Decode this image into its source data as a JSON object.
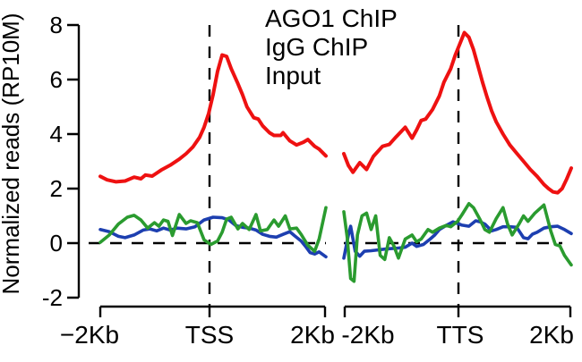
{
  "chart_data": {
    "type": "line",
    "title": "",
    "ylabel": "Normalized reads (RP10M)",
    "ylim": [
      -2,
      8
    ],
    "y_ticks": [
      "8",
      "6",
      "4",
      "2",
      "0",
      "-2"
    ],
    "y_tick_values": [
      8,
      6,
      4,
      2,
      0,
      -2
    ],
    "grid": false,
    "zero_dashed_line_y": 0,
    "legend_position": "top-center",
    "legend": [
      {
        "label": "AGO1 ChIP",
        "color": "#ee1111"
      },
      {
        "label": "IgG ChIP",
        "color": "#2a9b2f"
      },
      {
        "label": "Input",
        "color": "#1d3fb0"
      }
    ],
    "panels": [
      {
        "id": "tss",
        "center_reference": "TSS",
        "x_tick_labels": [
          "−2Kb",
          "TSS",
          "2Kb"
        ],
        "dashed_center_line": true,
        "series": [
          {
            "name": "AGO1 ChIP",
            "color": "#ee1111",
            "points": [
              [
                0.0,
                2.45
              ],
              [
                0.03,
                2.32
              ],
              [
                0.07,
                2.25
              ],
              [
                0.11,
                2.28
              ],
              [
                0.15,
                2.42
              ],
              [
                0.18,
                2.36
              ],
              [
                0.2,
                2.5
              ],
              [
                0.23,
                2.46
              ],
              [
                0.27,
                2.68
              ],
              [
                0.31,
                2.86
              ],
              [
                0.35,
                3.08
              ],
              [
                0.38,
                3.28
              ],
              [
                0.41,
                3.52
              ],
              [
                0.44,
                3.88
              ],
              [
                0.46,
                4.25
              ],
              [
                0.48,
                4.75
              ],
              [
                0.5,
                5.45
              ],
              [
                0.52,
                6.3
              ],
              [
                0.54,
                6.9
              ],
              [
                0.56,
                6.85
              ],
              [
                0.58,
                6.4
              ],
              [
                0.61,
                5.85
              ],
              [
                0.63,
                5.45
              ],
              [
                0.65,
                5.0
              ],
              [
                0.68,
                4.6
              ],
              [
                0.7,
                4.55
              ],
              [
                0.72,
                4.3
              ],
              [
                0.75,
                4.05
              ],
              [
                0.77,
                3.95
              ],
              [
                0.8,
                3.95
              ],
              [
                0.81,
                4.05
              ],
              [
                0.84,
                3.75
              ],
              [
                0.87,
                3.6
              ],
              [
                0.9,
                3.7
              ],
              [
                0.92,
                3.8
              ],
              [
                0.95,
                3.55
              ],
              [
                0.97,
                3.45
              ],
              [
                1.0,
                3.2
              ]
            ]
          },
          {
            "name": "Input",
            "color": "#1d3fb0",
            "points": [
              [
                0.0,
                0.5
              ],
              [
                0.04,
                0.42
              ],
              [
                0.08,
                0.25
              ],
              [
                0.11,
                0.2
              ],
              [
                0.15,
                0.3
              ],
              [
                0.19,
                0.48
              ],
              [
                0.22,
                0.52
              ],
              [
                0.25,
                0.45
              ],
              [
                0.28,
                0.55
              ],
              [
                0.31,
                0.48
              ],
              [
                0.34,
                0.55
              ],
              [
                0.38,
                0.52
              ],
              [
                0.42,
                0.6
              ],
              [
                0.46,
                0.85
              ],
              [
                0.5,
                0.95
              ],
              [
                0.54,
                0.93
              ],
              [
                0.57,
                0.85
              ],
              [
                0.6,
                0.65
              ],
              [
                0.63,
                0.58
              ],
              [
                0.66,
                0.55
              ],
              [
                0.69,
                0.48
              ],
              [
                0.72,
                0.32
              ],
              [
                0.75,
                0.25
              ],
              [
                0.78,
                0.22
              ],
              [
                0.81,
                0.32
              ],
              [
                0.84,
                0.42
              ],
              [
                0.86,
                0.28
              ],
              [
                0.89,
                0.08
              ],
              [
                0.91,
                -0.12
              ],
              [
                0.93,
                -0.35
              ],
              [
                0.95,
                -0.4
              ],
              [
                0.97,
                -0.32
              ],
              [
                1.0,
                -0.5
              ]
            ]
          },
          {
            "name": "IgG ChIP",
            "color": "#2a9b2f",
            "points": [
              [
                0.0,
                0.03
              ],
              [
                0.04,
                0.3
              ],
              [
                0.08,
                0.7
              ],
              [
                0.12,
                0.95
              ],
              [
                0.15,
                1.02
              ],
              [
                0.18,
                0.85
              ],
              [
                0.21,
                0.55
              ],
              [
                0.24,
                0.75
              ],
              [
                0.26,
                0.62
              ],
              [
                0.28,
                0.85
              ],
              [
                0.3,
                0.8
              ],
              [
                0.32,
                0.28
              ],
              [
                0.35,
                1.05
              ],
              [
                0.38,
                0.72
              ],
              [
                0.4,
                0.82
              ],
              [
                0.43,
                0.75
              ],
              [
                0.46,
                0.12
              ],
              [
                0.49,
                -0.05
              ],
              [
                0.52,
                0.08
              ],
              [
                0.54,
                0.4
              ],
              [
                0.56,
                0.88
              ],
              [
                0.58,
                0.95
              ],
              [
                0.61,
                0.52
              ],
              [
                0.63,
                0.72
              ],
              [
                0.66,
                0.5
              ],
              [
                0.69,
                1.05
              ],
              [
                0.71,
                0.45
              ],
              [
                0.74,
                0.5
              ],
              [
                0.77,
                0.85
              ],
              [
                0.79,
                0.62
              ],
              [
                0.82,
                1.0
              ],
              [
                0.84,
                0.52
              ],
              [
                0.87,
                0.55
              ],
              [
                0.89,
                0.32
              ],
              [
                0.92,
                -0.08
              ],
              [
                0.95,
                -0.3
              ],
              [
                0.97,
                0.15
              ],
              [
                1.0,
                1.3
              ]
            ]
          }
        ]
      },
      {
        "id": "tts",
        "center_reference": "TTS",
        "x_tick_labels": [
          "-2Kb",
          "TTS",
          "2Kb"
        ],
        "dashed_center_line": true,
        "series": [
          {
            "name": "AGO1 ChIP",
            "color": "#ee1111",
            "points": [
              [
                0.0,
                3.28
              ],
              [
                0.02,
                2.85
              ],
              [
                0.04,
                2.6
              ],
              [
                0.07,
                2.95
              ],
              [
                0.1,
                2.7
              ],
              [
                0.13,
                3.18
              ],
              [
                0.17,
                3.55
              ],
              [
                0.2,
                3.62
              ],
              [
                0.23,
                3.9
              ],
              [
                0.27,
                4.25
              ],
              [
                0.3,
                3.85
              ],
              [
                0.32,
                4.15
              ],
              [
                0.34,
                4.5
              ],
              [
                0.36,
                4.55
              ],
              [
                0.39,
                4.9
              ],
              [
                0.42,
                5.4
              ],
              [
                0.44,
                5.9
              ],
              [
                0.47,
                6.4
              ],
              [
                0.49,
                6.9
              ],
              [
                0.51,
                7.3
              ],
              [
                0.53,
                7.72
              ],
              [
                0.55,
                7.55
              ],
              [
                0.57,
                7.1
              ],
              [
                0.59,
                6.5
              ],
              [
                0.61,
                5.9
              ],
              [
                0.63,
                5.35
              ],
              [
                0.65,
                4.85
              ],
              [
                0.67,
                4.45
              ],
              [
                0.7,
                4.0
              ],
              [
                0.73,
                3.6
              ],
              [
                0.76,
                3.3
              ],
              [
                0.79,
                3.0
              ],
              [
                0.82,
                2.7
              ],
              [
                0.85,
                2.45
              ],
              [
                0.88,
                2.15
              ],
              [
                0.9,
                2.0
              ],
              [
                0.92,
                1.88
              ],
              [
                0.94,
                1.85
              ],
              [
                0.96,
                2.0
              ],
              [
                0.98,
                2.35
              ],
              [
                1.0,
                2.75
              ]
            ]
          },
          {
            "name": "Input",
            "color": "#1d3fb0",
            "points": [
              [
                0.0,
                -0.55
              ],
              [
                0.02,
                0.3
              ],
              [
                0.03,
                0.62
              ],
              [
                0.05,
                -0.3
              ],
              [
                0.07,
                -0.48
              ],
              [
                0.09,
                -0.3
              ],
              [
                0.12,
                -0.28
              ],
              [
                0.15,
                -0.25
              ],
              [
                0.18,
                -0.22
              ],
              [
                0.21,
                -0.2
              ],
              [
                0.24,
                -0.18
              ],
              [
                0.27,
                -0.15
              ],
              [
                0.3,
                0.0
              ],
              [
                0.32,
                -0.12
              ],
              [
                0.35,
                -0.05
              ],
              [
                0.38,
                0.15
              ],
              [
                0.4,
                0.3
              ],
              [
                0.42,
                0.5
              ],
              [
                0.45,
                0.65
              ],
              [
                0.48,
                0.78
              ],
              [
                0.5,
                0.72
              ],
              [
                0.52,
                0.66
              ],
              [
                0.55,
                0.62
              ],
              [
                0.58,
                0.82
              ],
              [
                0.6,
                0.78
              ],
              [
                0.62,
                0.7
              ],
              [
                0.65,
                0.45
              ],
              [
                0.67,
                0.5
              ],
              [
                0.7,
                0.6
              ],
              [
                0.73,
                0.6
              ],
              [
                0.76,
                0.58
              ],
              [
                0.79,
                0.2
              ],
              [
                0.81,
                0.16
              ],
              [
                0.83,
                0.33
              ],
              [
                0.85,
                0.4
              ],
              [
                0.88,
                0.55
              ],
              [
                0.91,
                0.6
              ],
              [
                0.94,
                0.62
              ],
              [
                0.97,
                0.5
              ],
              [
                1.0,
                0.35
              ]
            ]
          },
          {
            "name": "IgG ChIP",
            "color": "#2a9b2f",
            "points": [
              [
                0.0,
                1.15
              ],
              [
                0.015,
                0.2
              ],
              [
                0.03,
                -1.3
              ],
              [
                0.045,
                -1.4
              ],
              [
                0.06,
                0.3
              ],
              [
                0.08,
                1.0
              ],
              [
                0.1,
                1.1
              ],
              [
                0.12,
                0.5
              ],
              [
                0.14,
                1.0
              ],
              [
                0.16,
                -0.45
              ],
              [
                0.18,
                -0.6
              ],
              [
                0.2,
                0.2
              ],
              [
                0.22,
                -0.1
              ],
              [
                0.24,
                -0.55
              ],
              [
                0.27,
                0.15
              ],
              [
                0.3,
                0.3
              ],
              [
                0.32,
                0.05
              ],
              [
                0.34,
                0.15
              ],
              [
                0.37,
                0.5
              ],
              [
                0.39,
                0.4
              ],
              [
                0.42,
                0.55
              ],
              [
                0.45,
                0.65
              ],
              [
                0.47,
                0.6
              ],
              [
                0.5,
                0.8
              ],
              [
                0.52,
                1.05
              ],
              [
                0.55,
                1.45
              ],
              [
                0.57,
                1.3
              ],
              [
                0.6,
                0.85
              ],
              [
                0.62,
                0.5
              ],
              [
                0.64,
                0.4
              ],
              [
                0.67,
                0.9
              ],
              [
                0.7,
                1.3
              ],
              [
                0.72,
                0.7
              ],
              [
                0.74,
                0.3
              ],
              [
                0.77,
                0.7
              ],
              [
                0.79,
                1.0
              ],
              [
                0.81,
                0.8
              ],
              [
                0.84,
                1.1
              ],
              [
                0.88,
                1.4
              ],
              [
                0.91,
                0.45
              ],
              [
                0.93,
                -0.05
              ],
              [
                0.95,
                -0.1
              ],
              [
                0.97,
                -0.45
              ],
              [
                1.0,
                -0.8
              ]
            ]
          }
        ]
      }
    ]
  }
}
